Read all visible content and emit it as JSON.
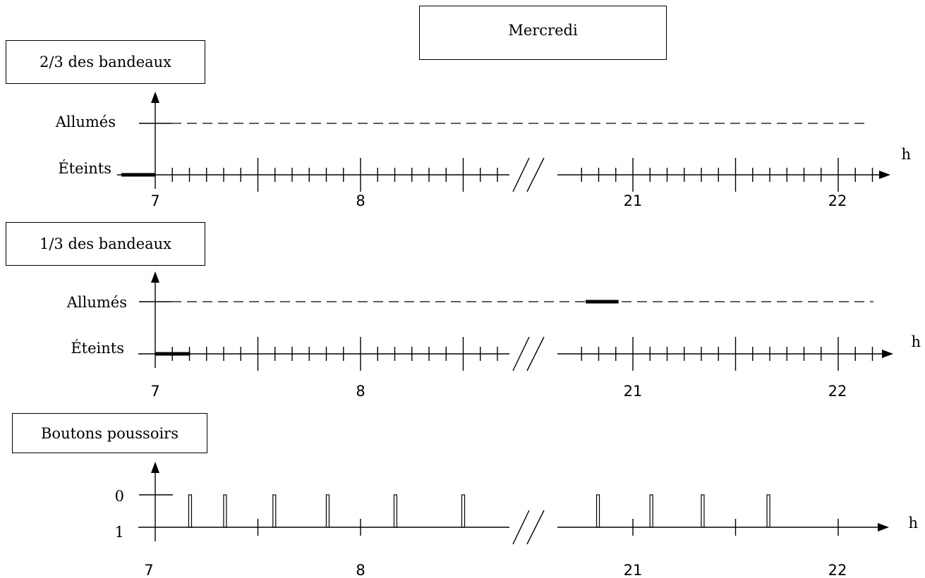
{
  "day_title": "Mercredi",
  "unit": "h",
  "time_labels": [
    "7",
    "8",
    "21",
    "22"
  ],
  "panels": [
    {
      "title": "2/3 des bandeaux",
      "state_high": "Allumés",
      "state_low": "Éteints",
      "segments": [
        {
          "from": 7.0,
          "to": 7.0,
          "state": "low"
        }
      ]
    },
    {
      "title": "1/3 des bandeaux",
      "state_high": "Allumés",
      "state_low": "Éteints",
      "segments": [
        {
          "from": 7.0,
          "to": 7.17,
          "state": "low"
        },
        {
          "from": 20.77,
          "to": 20.93,
          "state": "high"
        }
      ]
    },
    {
      "title": "Boutons poussoirs",
      "state_high": "0",
      "state_low": "1",
      "pulses_morning": [
        7.17,
        7.34,
        7.58,
        7.84,
        8.17,
        8.5
      ],
      "pulses_evening": [
        20.83,
        21.09,
        21.34,
        21.66
      ]
    }
  ]
}
